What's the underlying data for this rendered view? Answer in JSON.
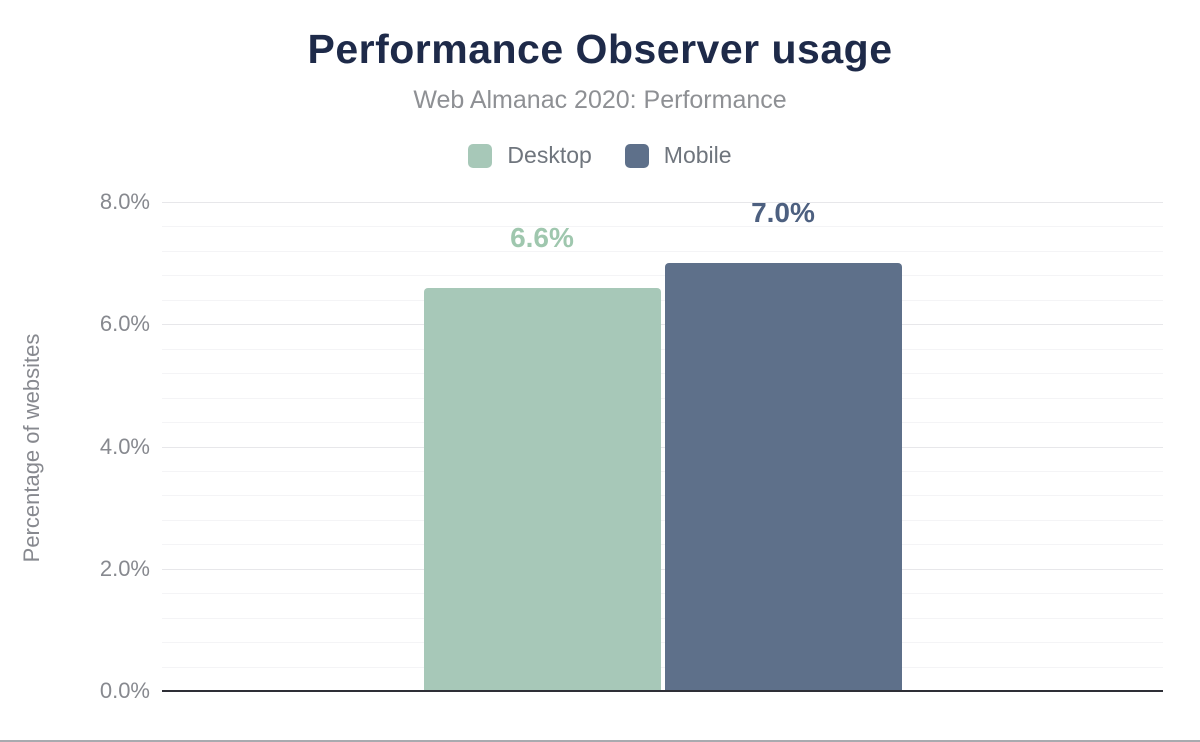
{
  "chart_data": {
    "type": "bar",
    "title": "Performance Observer usage",
    "subtitle": "Web Almanac 2020: Performance",
    "ylabel": "Percentage of websites",
    "series": [
      {
        "name": "Desktop",
        "value": 6.6,
        "label": "6.6%",
        "color": "#a7c8b8",
        "label_color": "#9fc7ae"
      },
      {
        "name": "Mobile",
        "value": 7.0,
        "label": "7.0%",
        "color": "#5e708a",
        "label_color": "#4d6080"
      }
    ],
    "ylim": [
      0,
      8
    ],
    "ytick_values": [
      0,
      2,
      4,
      6,
      8
    ],
    "ytick_labels": [
      "0.0%",
      "2.0%",
      "4.0%",
      "6.0%",
      "8.0%"
    ],
    "minor_grid_step": 0.4,
    "grid": true,
    "legend_position": "top"
  },
  "colors": {
    "title": "#1e2a49",
    "subtitle": "#8e9094",
    "tick_text": "#87898f",
    "legend_text": "#6f757d",
    "axis_line": "#2e2f36",
    "major_grid": "#e7e7ea",
    "minor_grid": "#f4f4f6",
    "page_border": "#a8aaaf",
    "background": "#ffffff"
  }
}
